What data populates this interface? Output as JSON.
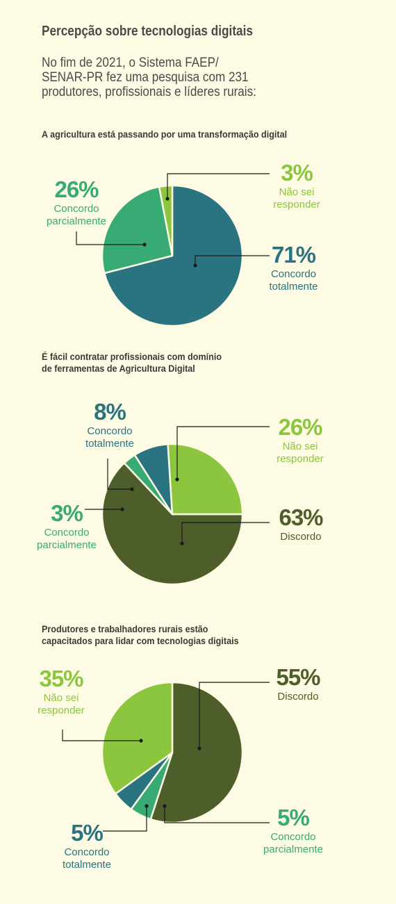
{
  "header": {
    "title": "Percepção sobre tecnologias digitais",
    "intro_1": "No fim de 2021, o Sistema FAEP/",
    "intro_2": "SENAR-PR fez uma pesquisa com 231",
    "intro_3": "produtores, profissionais e líderes rurais:"
  },
  "colors": {
    "dark_teal": "#2a7381",
    "medium_green": "#38ab74",
    "light_green": "#8cc63f",
    "olive": "#4e5e2a",
    "leader_line": "#1a1a1a"
  },
  "chart_data": [
    {
      "type": "pie",
      "title_1": "A agricultura está passando por uma transformação digital",
      "title_2": "",
      "slices": [
        {
          "label_1": "Concordo",
          "label_2": "totalmente",
          "pct_text": "71%",
          "value": 71,
          "color": "#2a7381"
        },
        {
          "label_1": "Concordo",
          "label_2": "parcialmente",
          "pct_text": "26%",
          "value": 26,
          "color": "#38ab74"
        },
        {
          "label_1": "Não sei",
          "label_2": "responder",
          "pct_text": "3%",
          "value": 3,
          "color": "#8cc63f"
        }
      ]
    },
    {
      "type": "pie",
      "title_1": "É fácil contratar profissionais com domínio",
      "title_2": "de ferramentas de Agricultura Digital",
      "slices": [
        {
          "label_1": "Discordo",
          "label_2": "",
          "pct_text": "63%",
          "value": 63,
          "color": "#4e5e2a"
        },
        {
          "label_1": "Concordo",
          "label_2": "parcialmente",
          "pct_text": "3%",
          "value": 3,
          "color": "#38ab74"
        },
        {
          "label_1": "Concordo",
          "label_2": "totalmente",
          "pct_text": "8%",
          "value": 8,
          "color": "#2a7381"
        },
        {
          "label_1": "Não sei",
          "label_2": "responder",
          "pct_text": "26%",
          "value": 26,
          "color": "#8cc63f"
        }
      ]
    },
    {
      "type": "pie",
      "title_1": "Produtores e trabalhadores rurais estão",
      "title_2": "capacitados para lidar com tecnologias digitais",
      "slices": [
        {
          "label_1": "Discordo",
          "label_2": "",
          "pct_text": "55%",
          "value": 55,
          "color": "#4e5e2a"
        },
        {
          "label_1": "Concordo",
          "label_2": "parcialmente",
          "pct_text": "5%",
          "value": 5,
          "color": "#38ab74"
        },
        {
          "label_1": "Concordo",
          "label_2": "totalmente",
          "pct_text": "5%",
          "value": 5,
          "color": "#2a7381"
        },
        {
          "label_1": "Não sei",
          "label_2": "responder",
          "pct_text": "35%",
          "value": 35,
          "color": "#8cc63f"
        }
      ]
    }
  ]
}
